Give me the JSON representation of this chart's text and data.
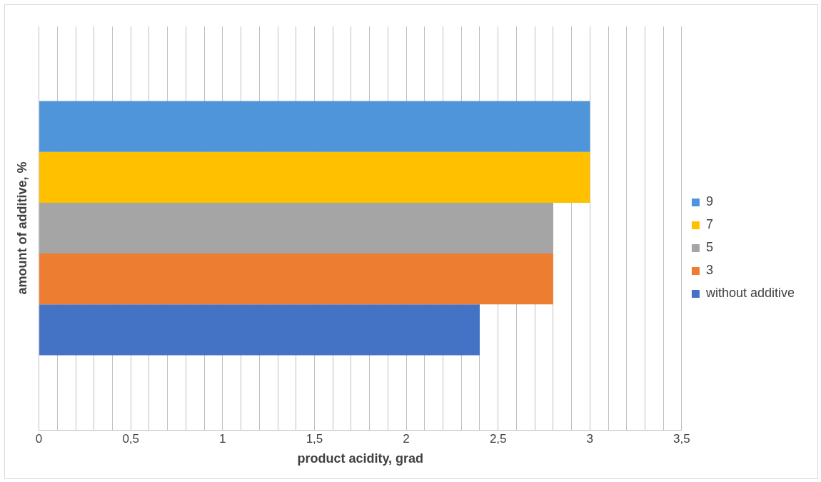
{
  "chart_data": {
    "type": "bar",
    "orientation": "horizontal",
    "xlabel": "product acidity, grad",
    "ylabel": "amount of additive, %",
    "categories": [
      null
    ],
    "series": [
      {
        "name": "9",
        "color": "#4e95d9",
        "values": [
          3.0
        ]
      },
      {
        "name": "7",
        "color": "#ffc000",
        "values": [
          3.0
        ]
      },
      {
        "name": "5",
        "color": "#a5a5a5",
        "values": [
          2.8
        ]
      },
      {
        "name": "3",
        "color": "#ed7d31",
        "values": [
          2.8
        ]
      },
      {
        "name": "without additive",
        "color": "#4472c4",
        "values": [
          2.4
        ]
      }
    ],
    "xlim": [
      0,
      3.5
    ],
    "xticks": [
      {
        "value": 0,
        "label": "0"
      },
      {
        "value": 0.1,
        "label": null
      },
      {
        "value": 0.2,
        "label": null
      },
      {
        "value": 0.3,
        "label": null
      },
      {
        "value": 0.4,
        "label": null
      },
      {
        "value": 0.5,
        "label": "0,5"
      },
      {
        "value": 0.6,
        "label": null
      },
      {
        "value": 0.7,
        "label": null
      },
      {
        "value": 0.8,
        "label": null
      },
      {
        "value": 0.9,
        "label": null
      },
      {
        "value": 1,
        "label": "1"
      },
      {
        "value": 1.1,
        "label": null
      },
      {
        "value": 1.2,
        "label": null
      },
      {
        "value": 1.3,
        "label": null
      },
      {
        "value": 1.4,
        "label": null
      },
      {
        "value": 1.5,
        "label": "1,5"
      },
      {
        "value": 1.6,
        "label": null
      },
      {
        "value": 1.7,
        "label": null
      },
      {
        "value": 1.8,
        "label": null
      },
      {
        "value": 1.9,
        "label": null
      },
      {
        "value": 2,
        "label": "2"
      },
      {
        "value": 2.1,
        "label": null
      },
      {
        "value": 2.2,
        "label": null
      },
      {
        "value": 2.3,
        "label": null
      },
      {
        "value": 2.4,
        "label": null
      },
      {
        "value": 2.5,
        "label": "2,5"
      },
      {
        "value": 2.6,
        "label": null
      },
      {
        "value": 2.7,
        "label": null
      },
      {
        "value": 2.8,
        "label": null
      },
      {
        "value": 2.9,
        "label": null
      },
      {
        "value": 3,
        "label": "3"
      },
      {
        "value": 3.1,
        "label": null
      },
      {
        "value": 3.2,
        "label": null
      },
      {
        "value": 3.3,
        "label": null
      },
      {
        "value": 3.4,
        "label": null
      },
      {
        "value": 3.5,
        "label": "3,5"
      }
    ],
    "grid": "x",
    "legend": "right",
    "tick_labels": "x"
  }
}
